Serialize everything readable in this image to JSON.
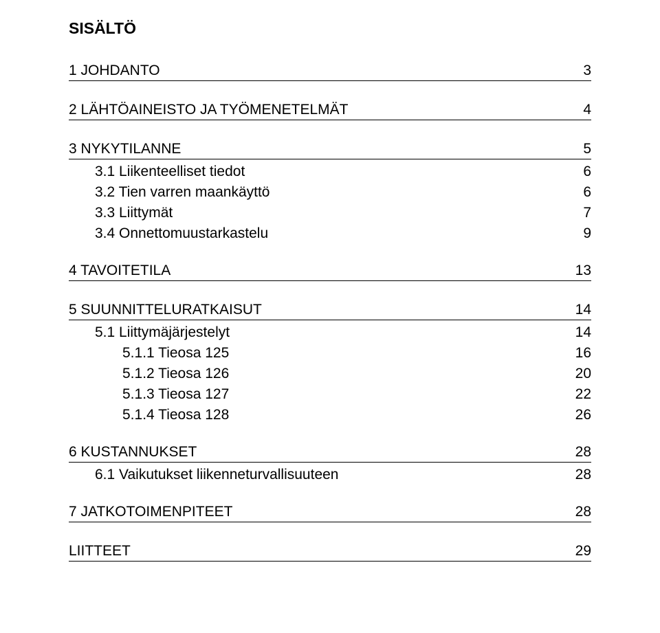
{
  "title": "SISÄLTÖ",
  "font_family": "Arial",
  "title_fontsize": 23,
  "row_fontsize": 21,
  "text_color": "#000000",
  "background_color": "#ffffff",
  "underline_color": "#000000",
  "toc": {
    "s1": {
      "label": "1  JOHDANTO",
      "page": "3"
    },
    "s2": {
      "label": "2  LÄHTÖAINEISTO JA TYÖMENETELMÄT",
      "page": "4"
    },
    "s3": {
      "label": "3  NYKYTILANNE",
      "page": "5"
    },
    "s3_1": {
      "label": "3.1  Liikenteelliset tiedot",
      "page": "6"
    },
    "s3_2": {
      "label": "3.2  Tien varren maankäyttö",
      "page": "6"
    },
    "s3_3": {
      "label": "3.3  Liittymät",
      "page": "7"
    },
    "s3_4": {
      "label": "3.4  Onnettomuustarkastelu",
      "page": "9"
    },
    "s4": {
      "label": "4  TAVOITETILA",
      "page": "13"
    },
    "s5": {
      "label": "5  SUUNNITTELURATKAISUT",
      "page": "14"
    },
    "s5_1": {
      "label": "5.1  Liittymäjärjestelyt",
      "page": "14"
    },
    "s5_1_1": {
      "label": "5.1.1  Tieosa 125",
      "page": "16"
    },
    "s5_1_2": {
      "label": "5.1.2  Tieosa 126",
      "page": "20"
    },
    "s5_1_3": {
      "label": "5.1.3  Tieosa 127",
      "page": "22"
    },
    "s5_1_4": {
      "label": "5.1.4  Tieosa 128",
      "page": "26"
    },
    "s6": {
      "label": "6  KUSTANNUKSET",
      "page": "28"
    },
    "s6_1": {
      "label": "6.1  Vaikutukset liikenneturvallisuuteen",
      "page": "28"
    },
    "s7": {
      "label": "7  JATKOTOIMENPITEET",
      "page": "28"
    },
    "liitteet": {
      "label": "LIITTEET",
      "page": "29"
    }
  }
}
